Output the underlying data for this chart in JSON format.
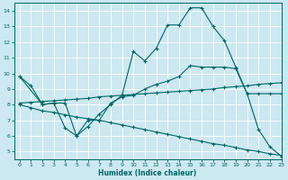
{
  "xlabel": "Humidex (Indice chaleur)",
  "bg_color": "#cce8f0",
  "line_color": "#006666",
  "grid_color": "#ffffff",
  "xlim": [
    -0.5,
    23
  ],
  "ylim": [
    4.5,
    14.5
  ],
  "xticks": [
    0,
    1,
    2,
    3,
    4,
    5,
    6,
    7,
    8,
    9,
    10,
    11,
    12,
    13,
    14,
    15,
    16,
    17,
    18,
    19,
    20,
    21,
    22,
    23
  ],
  "yticks": [
    5,
    6,
    7,
    8,
    9,
    10,
    11,
    12,
    13,
    14
  ],
  "line1_x": [
    0,
    1,
    2,
    3,
    4,
    5,
    6,
    7,
    8,
    9,
    10,
    11,
    12,
    13,
    14,
    15,
    16,
    17,
    18,
    19,
    20,
    21,
    22,
    23
  ],
  "line1_y": [
    9.8,
    9.2,
    8.0,
    8.1,
    6.5,
    6.0,
    6.6,
    7.4,
    8.0,
    8.6,
    11.4,
    10.8,
    11.6,
    13.1,
    13.1,
    14.2,
    14.2,
    13.0,
    12.1,
    10.4,
    8.7,
    6.4,
    5.3,
    4.7
  ],
  "line2_x": [
    0,
    1,
    2,
    3,
    4,
    5,
    6,
    7,
    8,
    9,
    10,
    11,
    12,
    13,
    14,
    15,
    16,
    17,
    18,
    19,
    20,
    21,
    22,
    23
  ],
  "line2_y": [
    8.1,
    8.15,
    8.2,
    8.25,
    8.3,
    8.35,
    8.4,
    8.5,
    8.55,
    8.6,
    8.65,
    8.7,
    8.75,
    8.8,
    8.85,
    8.9,
    8.95,
    9.0,
    9.1,
    9.15,
    9.2,
    9.3,
    9.35,
    9.4
  ],
  "line3_x": [
    0,
    1,
    2,
    3,
    4,
    5,
    6,
    7,
    8,
    9,
    10,
    11,
    12,
    13,
    14,
    15,
    16,
    17,
    18,
    19,
    20,
    21,
    22,
    23
  ],
  "line3_y": [
    8.0,
    7.8,
    7.6,
    7.5,
    7.35,
    7.2,
    7.1,
    7.0,
    6.85,
    6.7,
    6.55,
    6.4,
    6.25,
    6.1,
    5.95,
    5.8,
    5.65,
    5.5,
    5.4,
    5.25,
    5.1,
    5.0,
    4.85,
    4.75
  ],
  "line4_x": [
    0,
    2,
    3,
    4,
    5,
    6,
    7,
    8,
    9,
    10,
    11,
    12,
    13,
    14,
    15,
    16,
    17,
    18,
    19,
    20,
    21,
    22,
    23
  ],
  "line4_y": [
    9.8,
    8.0,
    8.1,
    8.1,
    6.0,
    7.0,
    7.0,
    8.1,
    8.5,
    8.6,
    9.0,
    9.3,
    9.5,
    9.8,
    10.5,
    10.4,
    10.4,
    10.4,
    10.3,
    8.7,
    8.7,
    8.7,
    8.7
  ]
}
